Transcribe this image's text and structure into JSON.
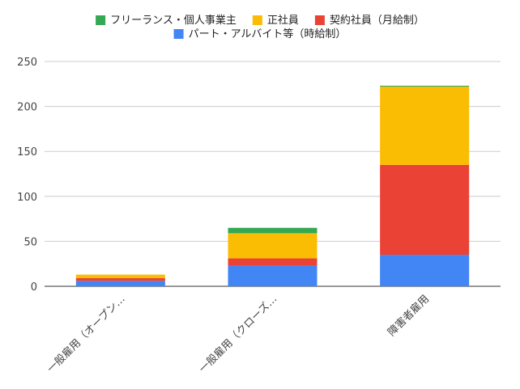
{
  "chart_data": {
    "type": "bar",
    "stacked": true,
    "categories": [
      "一般雇用（オープン…",
      "一般雇用（クローズ…",
      "障害者雇用"
    ],
    "series": [
      {
        "name": "パート・アルバイト等（時給制）",
        "color": "#4285f4",
        "values": [
          6,
          23,
          35
        ]
      },
      {
        "name": "契約社員（月給制）",
        "color": "#ea4335",
        "values": [
          3,
          8,
          100
        ]
      },
      {
        "name": "正社員",
        "color": "#fbbc04",
        "values": [
          4,
          28,
          87
        ]
      },
      {
        "name": "フリーランス・個人事業主",
        "color": "#34a853",
        "values": [
          0,
          6,
          1
        ]
      }
    ],
    "legend_order": [
      3,
      2,
      1,
      0
    ],
    "ylim": [
      0,
      250
    ],
    "yticks": [
      0,
      50,
      100,
      150,
      200,
      250
    ],
    "grid": true,
    "legend_position": "top"
  }
}
